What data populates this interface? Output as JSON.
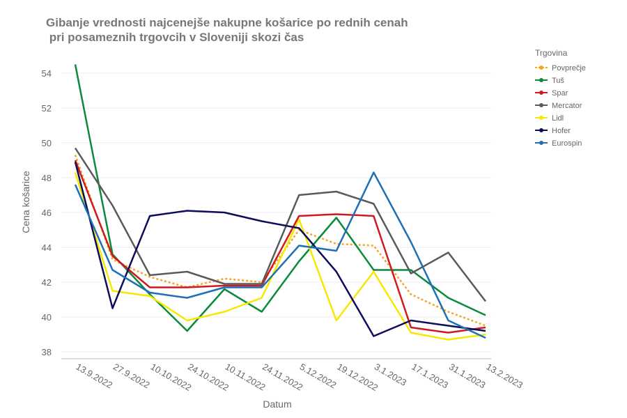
{
  "chart_data": {
    "type": "line",
    "title": [
      "Gibanje vrednosti najcenejše nakupne košarice  po rednih cenah",
      " pri posameznih trgovcih v Sloveniji skozi čas"
    ],
    "x_label": "Datum",
    "y_label": "Cena košarice",
    "legend_title": "Trgovina",
    "categories": [
      "13.9.2022",
      "27.9.2022",
      "10.10.2022",
      "24.10.2022",
      "10.11.2022",
      "24.11.2022",
      "5.12.2022",
      "19.12.2022",
      "3.1.2023",
      "17.1.2023",
      "31.1.2023",
      "13.2.2023"
    ],
    "series": [
      {
        "name": "Povprečje",
        "color": "#f5a623",
        "dashed": true,
        "values": [
          49.3,
          43.3,
          42.3,
          41.7,
          42.2,
          42.0,
          45.0,
          44.2,
          44.1,
          41.3,
          40.3,
          39.5
        ]
      },
      {
        "name": "Tuš",
        "color": "#0a8a3a",
        "values": [
          54.5,
          43.6,
          41.3,
          39.2,
          41.6,
          40.3,
          43.2,
          45.7,
          42.7,
          42.7,
          41.1,
          40.1
        ]
      },
      {
        "name": "Spar",
        "color": "#d0191e",
        "values": [
          49.0,
          43.5,
          41.7,
          41.7,
          41.8,
          41.8,
          45.8,
          45.9,
          45.8,
          39.4,
          39.1,
          39.4
        ]
      },
      {
        "name": "Mercator",
        "color": "#5a5a5a",
        "values": [
          49.7,
          46.4,
          42.4,
          42.6,
          41.9,
          41.9,
          47.0,
          47.2,
          46.5,
          42.5,
          43.7,
          40.9
        ]
      },
      {
        "name": "Lidl",
        "color": "#f6e800",
        "values": [
          48.3,
          41.5,
          41.2,
          39.8,
          40.3,
          41.1,
          45.6,
          39.8,
          42.6,
          39.1,
          38.7,
          39.0
        ]
      },
      {
        "name": "Hofer",
        "color": "#0d0d5c",
        "values": [
          48.9,
          40.5,
          45.8,
          46.1,
          46.0,
          45.5,
          45.1,
          42.6,
          38.9,
          39.8,
          39.5,
          39.2
        ]
      },
      {
        "name": "Eurospin",
        "color": "#1f6fb5",
        "values": [
          47.6,
          42.7,
          41.4,
          41.1,
          41.7,
          41.7,
          44.1,
          43.8,
          48.3,
          44.3,
          39.8,
          38.8
        ]
      }
    ],
    "ylim": [
      37.6,
      55.2
    ],
    "yticks": [
      38,
      40,
      42,
      44,
      46,
      48,
      50,
      52,
      54
    ],
    "grid": true
  }
}
